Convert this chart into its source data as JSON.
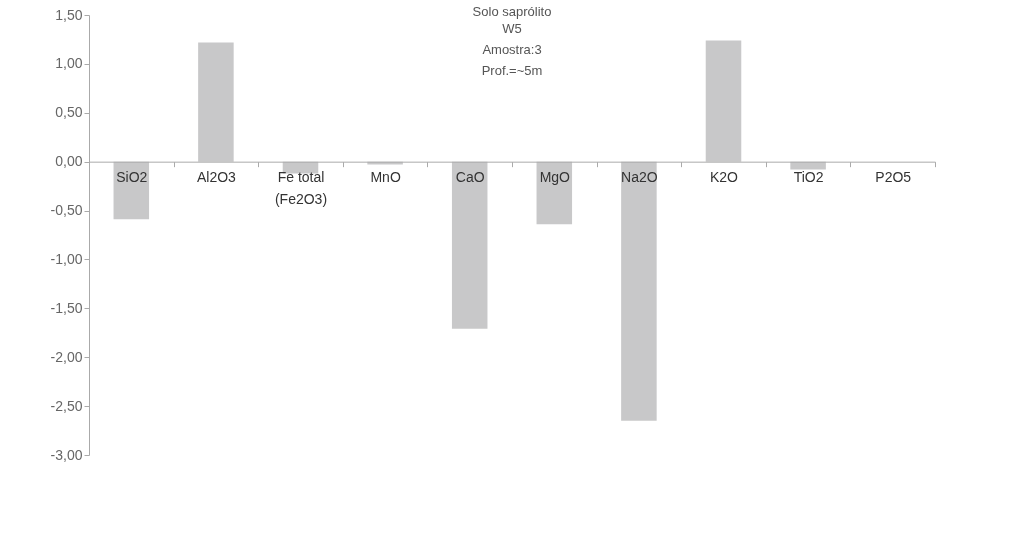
{
  "chart_data": {
    "type": "bar",
    "title": "Solo saprólito",
    "annotations": [
      "W5",
      "Amostra:3",
      "Prof.=~5m"
    ],
    "categories": [
      "SiO2",
      "Al2O3",
      "Fe total\n(Fe2O3)",
      "MnO",
      "CaO",
      "MgO",
      "Na2O",
      "K2O",
      "TiO2",
      "P2O5"
    ],
    "values": [
      -0.59,
      1.22,
      -0.12,
      -0.03,
      -1.71,
      -0.64,
      -2.65,
      1.24,
      -0.08,
      0
    ],
    "color": "#c8c8c9",
    "ylim": [
      -3,
      1.5
    ],
    "yticks": [
      {
        "value": -3,
        "label": "-3,00"
      },
      {
        "value": -2.5,
        "label": "-2,50"
      },
      {
        "value": -2,
        "label": "-2,00"
      },
      {
        "value": -1.5,
        "label": "-1,50"
      },
      {
        "value": -1,
        "label": "-1,00"
      },
      {
        "value": -0.5,
        "label": "-0,50"
      },
      {
        "value": 0,
        "label": "0,00"
      },
      {
        "value": 0.5,
        "label": "0,50"
      },
      {
        "value": 1,
        "label": "1,00"
      },
      {
        "value": 1.5,
        "label": "1,50"
      }
    ],
    "grid": false
  }
}
